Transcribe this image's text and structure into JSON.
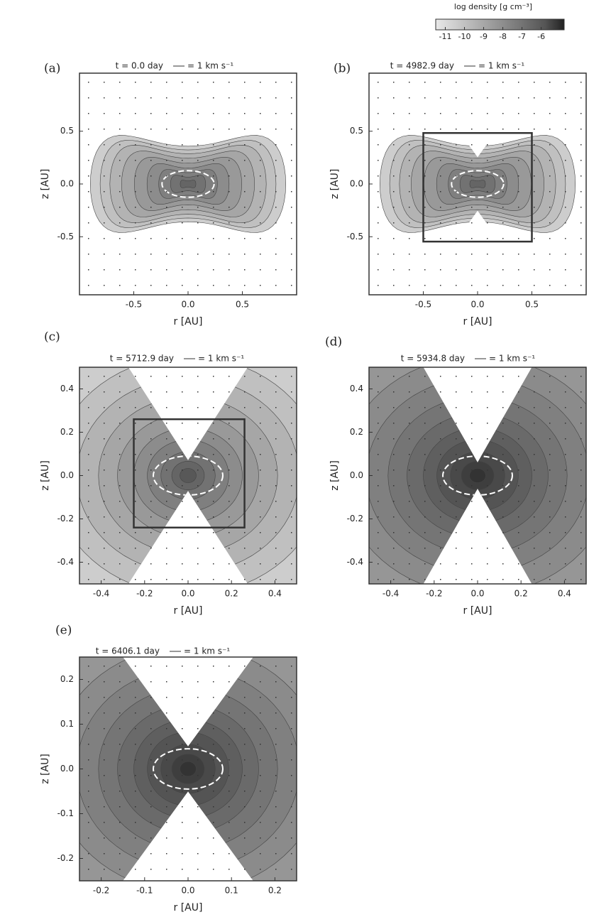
{
  "colorbar": {
    "label": "log density [g cm⁻³]",
    "lim": [
      -11.5,
      -4.8
    ],
    "ticks": [
      -11,
      -10,
      -9,
      -8,
      -7,
      -6
    ]
  },
  "chart_data": [
    {
      "type": "contour",
      "panel": "(a)",
      "title": "t = 0.0 day",
      "key": "= 1 km s⁻¹",
      "x_label": "r [AU]",
      "y_label": "z [AU]",
      "xlim": [
        -1.0,
        1.0
      ],
      "ylim": [
        -1.05,
        1.05
      ],
      "xticks": [
        -0.5,
        {
          "value": 0,
          "label": "0.0"
        },
        0.5
      ],
      "yticks": [
        0.5,
        {
          "value": 0,
          "label": "0.0"
        },
        -0.5
      ]
    },
    {
      "type": "contour",
      "panel": "(b)",
      "title": "t = 4982.9 day",
      "key": "= 1 km s⁻¹",
      "x_label": "r [AU]",
      "y_label": "z [AU]",
      "xlim": [
        -1.0,
        1.0
      ],
      "ylim": [
        -1.05,
        1.05
      ],
      "xticks": [
        -0.5,
        {
          "value": 0,
          "label": "0.0"
        },
        0.5
      ],
      "yticks": [
        0.5,
        {
          "value": 0,
          "label": "0.0"
        },
        -0.5
      ]
    },
    {
      "type": "contour",
      "panel": "(c)",
      "title": "t = 5712.9 day",
      "key": "= 1 km s⁻¹",
      "x_label": "r [AU]",
      "y_label": "z [AU]",
      "xlim": [
        -0.5,
        0.5
      ],
      "ylim": [
        -0.5,
        0.5
      ],
      "xticks": [
        -0.4,
        -0.2,
        {
          "value": 0,
          "label": "0.0"
        },
        0.2,
        0.4
      ],
      "yticks": [
        0.4,
        0.2,
        {
          "value": 0,
          "label": "0.0"
        },
        -0.2,
        -0.4
      ]
    },
    {
      "type": "contour",
      "panel": "(d)",
      "title": "t = 5934.8 day",
      "key": "= 1 km s⁻¹",
      "x_label": "r [AU]",
      "y_label": "z [AU]",
      "xlim": [
        -0.5,
        0.5
      ],
      "ylim": [
        -0.5,
        0.5
      ],
      "xticks": [
        -0.4,
        -0.2,
        {
          "value": 0,
          "label": "0.0"
        },
        0.2,
        0.4
      ],
      "yticks": [
        0.4,
        0.2,
        {
          "value": 0,
          "label": "0.0"
        },
        -0.2,
        -0.4
      ]
    },
    {
      "type": "contour",
      "panel": "(e)",
      "title": "t = 6406.1 day",
      "key": "= 1 km s⁻¹",
      "x_label": "r [AU]",
      "y_label": "z [AU]",
      "xlim": [
        -0.25,
        0.25
      ],
      "ylim": [
        -0.25,
        0.25
      ],
      "xticks": [
        -0.2,
        -0.1,
        {
          "value": 0,
          "label": "0.0"
        },
        0.1,
        0.2
      ],
      "yticks": [
        0.2,
        0.1,
        {
          "value": 0,
          "label": "0.0"
        },
        -0.1,
        -0.2
      ]
    }
  ]
}
